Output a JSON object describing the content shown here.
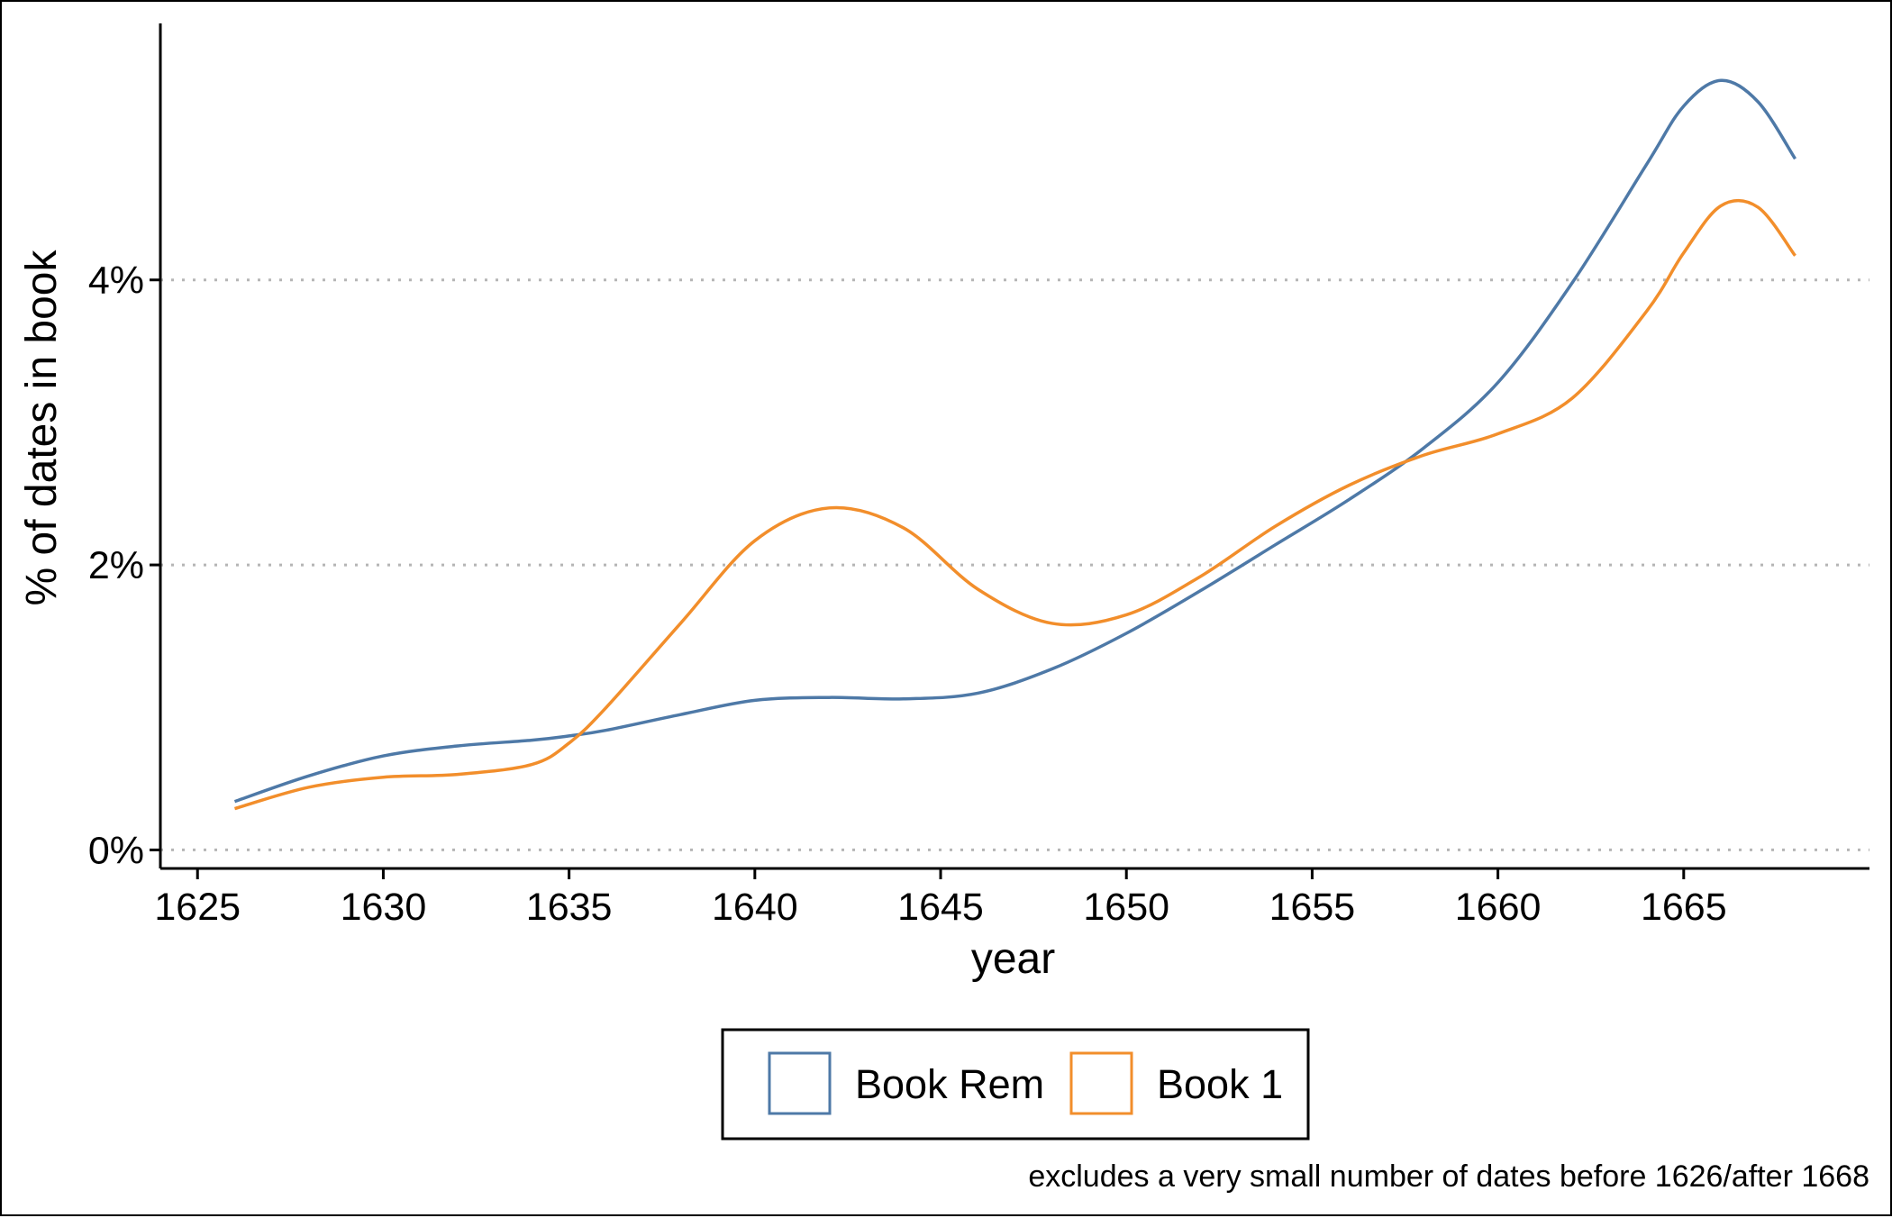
{
  "chart_data": {
    "type": "line",
    "title": "",
    "xlabel": "year",
    "ylabel": "% of dates in book",
    "caption": "excludes a very small number of dates before 1626/after 1668",
    "xlim": [
      1624,
      1670
    ],
    "ylim": [
      -0.13,
      5.8
    ],
    "x_ticks": [
      1625,
      1630,
      1635,
      1640,
      1645,
      1650,
      1655,
      1660,
      1665
    ],
    "x_tick_labels": [
      "1625",
      "1630",
      "1635",
      "1640",
      "1645",
      "1650",
      "1655",
      "1660",
      "1665"
    ],
    "y_ticks": [
      0,
      2,
      4
    ],
    "y_tick_labels": [
      "0%",
      "2%",
      "4%"
    ],
    "grid": "horizontal dotted at y ticks",
    "legend_position": "bottom",
    "x": [
      1626,
      1628,
      1630,
      1632,
      1634,
      1635,
      1636,
      1638,
      1640,
      1642,
      1644,
      1646,
      1648,
      1650,
      1652,
      1654,
      1656,
      1658,
      1660,
      1662,
      1664,
      1665,
      1666,
      1667,
      1668
    ],
    "series": [
      {
        "name": "Book Rem",
        "color": "#4e79a7",
        "values": [
          0.34,
          0.52,
          0.66,
          0.73,
          0.77,
          0.8,
          0.84,
          0.95,
          1.05,
          1.07,
          1.06,
          1.1,
          1.27,
          1.52,
          1.82,
          2.14,
          2.46,
          2.82,
          3.28,
          3.98,
          4.81,
          5.22,
          5.4,
          5.25,
          4.85
        ]
      },
      {
        "name": "Book 1",
        "color": "#f28e2b",
        "values": [
          0.29,
          0.44,
          0.51,
          0.53,
          0.6,
          0.75,
          1.0,
          1.59,
          2.17,
          2.4,
          2.26,
          1.83,
          1.59,
          1.65,
          1.92,
          2.27,
          2.56,
          2.77,
          2.92,
          3.17,
          3.78,
          4.19,
          4.52,
          4.51,
          4.17
        ]
      }
    ]
  }
}
